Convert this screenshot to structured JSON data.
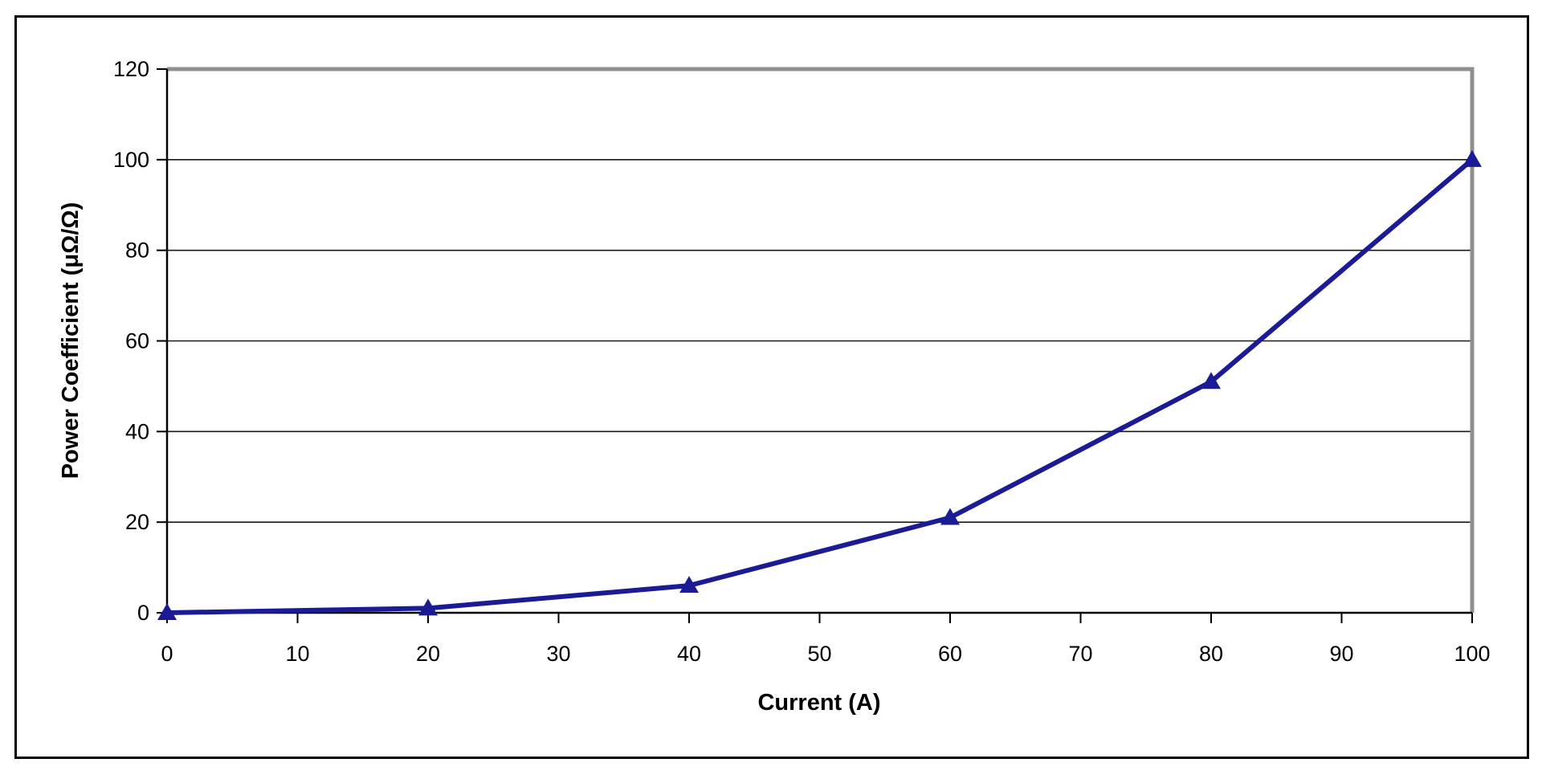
{
  "figure": {
    "background_color": "#ffffff",
    "outer_border_color": "#000000"
  },
  "chart_data": {
    "type": "line",
    "title": "",
    "xlabel": "Current (A)",
    "ylabel": "Power Coefficient (μΩ/Ω)",
    "series": [
      {
        "name": "Power Coefficient",
        "x": [
          0,
          20,
          40,
          60,
          80,
          100
        ],
        "y": [
          0,
          1,
          6,
          21,
          51,
          100
        ]
      }
    ],
    "xlim": [
      0,
      100
    ],
    "ylim": [
      0,
      120
    ],
    "x_ticks": [
      0,
      10,
      20,
      30,
      40,
      50,
      60,
      70,
      80,
      90,
      100
    ],
    "y_ticks": [
      0,
      20,
      40,
      60,
      80,
      100,
      120
    ],
    "grid": "horizontal",
    "legend": "none",
    "marker": "triangle-up",
    "line_color": "#1b1b96",
    "marker_color": "#1b1b96",
    "axis_color": "#000000",
    "gridline_color": "#1a1a1a",
    "plot_border_color": "#8f8f8f",
    "tick_label_color": "#000000"
  }
}
